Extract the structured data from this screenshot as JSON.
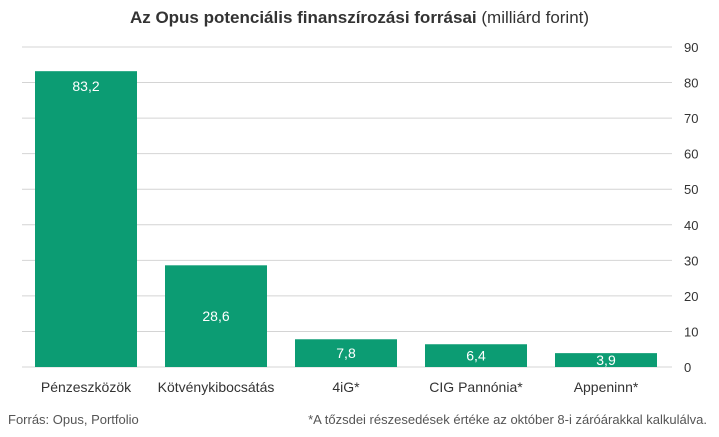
{
  "title": {
    "main": "Az Opus potenciális finanszírozási forrásai",
    "unit": "(milliárd forint)"
  },
  "footer": {
    "source": "Forrás: Opus, Portfolio",
    "note": "*A tőzsdei részesedések értéke az október 8-i záróárakkal kalkulálva."
  },
  "colors": {
    "bar": "#0c9c73",
    "grid": "#d4d4d4",
    "text": "#333333",
    "label_on_bar": "#ffffff"
  },
  "chart_data": {
    "type": "bar",
    "categories": [
      "Pénzeszközök",
      "Kötvénykibocsátás",
      "4iG*",
      "CIG Pannónia*",
      "Appeninn*"
    ],
    "values": [
      83.2,
      28.6,
      7.8,
      6.4,
      3.9
    ],
    "value_labels": [
      "83,2",
      "28,6",
      "7,8",
      "6,4",
      "3,9"
    ],
    "title": "Az Opus potenciális finanszírozási forrásai (milliárd forint)",
    "ylim": [
      0,
      90
    ],
    "yticks": [
      0,
      10,
      20,
      30,
      40,
      50,
      60,
      70,
      80,
      90
    ],
    "y_axis_side": "right",
    "grid": true
  }
}
